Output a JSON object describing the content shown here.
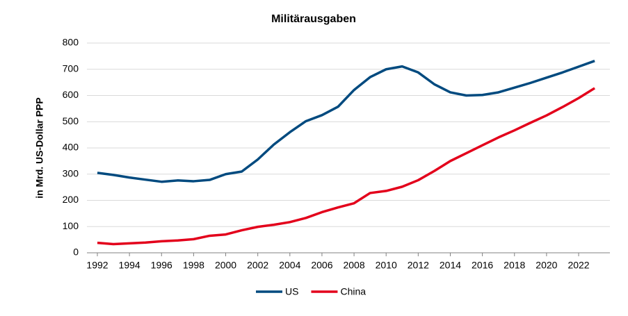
{
  "chart_data": {
    "type": "line",
    "title": "Militärausgaben",
    "y_label": "in Mrd. US-Dollar PPP",
    "x": [
      1992,
      1993,
      1994,
      1995,
      1996,
      1997,
      1998,
      1999,
      2000,
      2001,
      2002,
      2003,
      2004,
      2005,
      2006,
      2007,
      2008,
      2009,
      2010,
      2011,
      2012,
      2013,
      2014,
      2015,
      2016,
      2017,
      2018,
      2019,
      2020,
      2021,
      2022,
      2023
    ],
    "series": [
      {
        "name": "US",
        "color": "#004a7f",
        "values": [
          305,
          297,
          287,
          279,
          271,
          276,
          273,
          278,
          300,
          310,
          356,
          413,
          460,
          502,
          525,
          557,
          621,
          670,
          700,
          711,
          688,
          643,
          612,
          600,
          602,
          612,
          630,
          648,
          668,
          688,
          710,
          732
        ]
      },
      {
        "name": "China",
        "color": "#e3001b",
        "values": [
          38,
          33,
          36,
          39,
          44,
          47,
          52,
          65,
          70,
          86,
          99,
          107,
          117,
          133,
          155,
          173,
          189,
          228,
          236,
          252,
          277,
          312,
          350,
          380,
          410,
          440,
          467,
          496,
          524,
          556,
          590,
          628
        ]
      }
    ],
    "xlim": [
      1991.35,
      2023.95
    ],
    "xticks": [
      1992,
      1994,
      1996,
      1998,
      2000,
      2002,
      2004,
      2006,
      2008,
      2010,
      2012,
      2014,
      2016,
      2018,
      2020,
      2022
    ],
    "ylim": [
      0,
      800
    ],
    "yticks": [
      0,
      100,
      200,
      300,
      400,
      500,
      600,
      700,
      800
    ],
    "grid": true,
    "legend": "bottom"
  }
}
